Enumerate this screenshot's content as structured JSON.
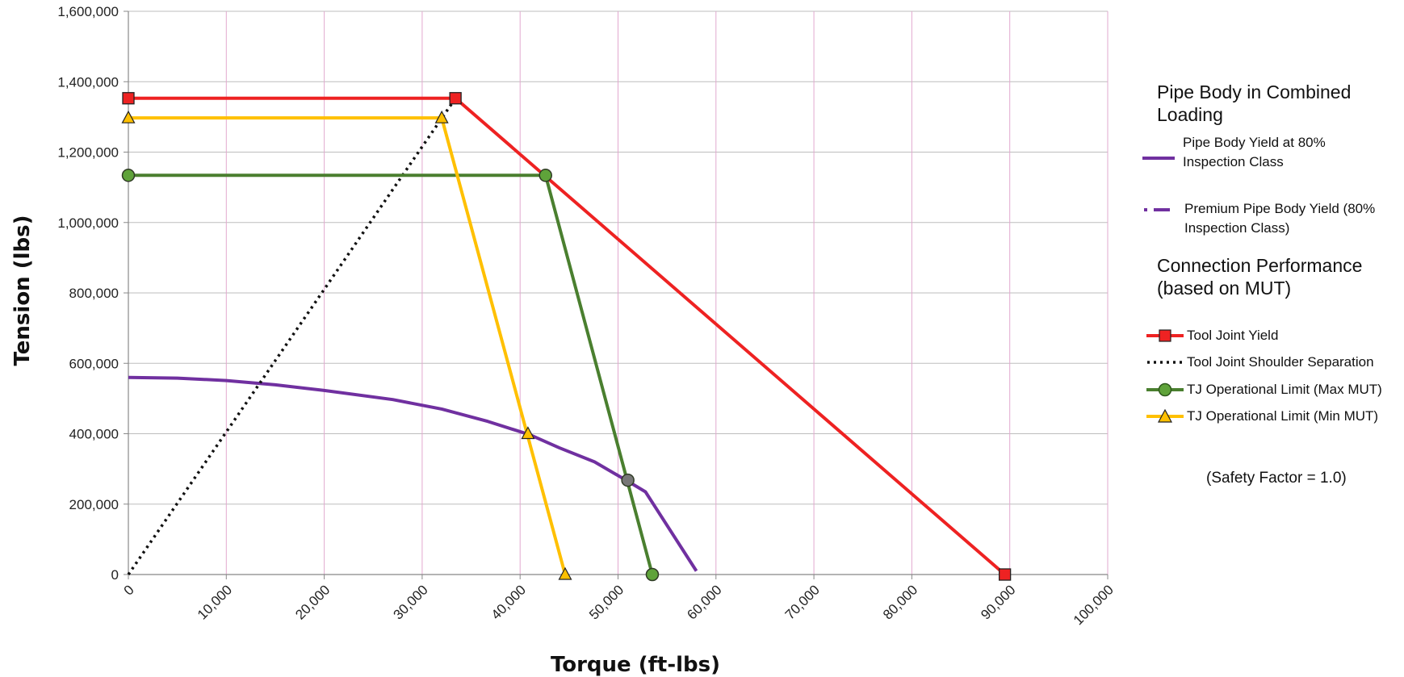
{
  "chart_data": {
    "type": "line",
    "xlabel": "Torque  (ft-lbs)",
    "ylabel": "Tension  (lbs)",
    "xlim": [
      0,
      100000
    ],
    "ylim": [
      0,
      1600000
    ],
    "x_ticks": [
      0,
      10000,
      20000,
      30000,
      40000,
      50000,
      60000,
      70000,
      80000,
      90000,
      100000
    ],
    "x_tick_labels": [
      "0",
      "10,000",
      "20,000",
      "30,000",
      "40,000",
      "50,000",
      "60,000",
      "70,000",
      "80,000",
      "90,000",
      "100,000"
    ],
    "y_ticks": [
      0,
      200000,
      400000,
      600000,
      800000,
      1000000,
      1200000,
      1400000,
      1600000
    ],
    "y_tick_labels": [
      "0",
      "200,000",
      "400,000",
      "600,000",
      "800,000",
      "1,000,000",
      "1,200,000",
      "1,400,000",
      "1,600,000"
    ],
    "grid": true,
    "legend_position": "right",
    "series": [
      {
        "name": "Pipe Body Yield at 80% Inspection Class",
        "color": "#7030a0",
        "style": "solid",
        "marker": "none",
        "points": [
          [
            0,
            560000
          ],
          [
            5000,
            558000
          ],
          [
            10000,
            551000
          ],
          [
            15000,
            539000
          ],
          [
            20000,
            523000
          ],
          [
            27000,
            497000
          ],
          [
            32000,
            470000
          ],
          [
            36700,
            435000
          ],
          [
            41000,
            397000
          ],
          [
            44000,
            360000
          ],
          [
            47600,
            320000
          ],
          [
            51000,
            265000
          ],
          [
            52800,
            235000
          ],
          [
            58000,
            10000
          ]
        ]
      },
      {
        "name": "Premium Pipe Body Yield (80% Inspection Class)",
        "color": "#7030a0",
        "style": "dash-dot",
        "marker": "none",
        "points": []
      },
      {
        "name": "Tool Joint Yield",
        "color": "#ee2222",
        "style": "solid",
        "marker": "square",
        "marker_fill": "#ee2222",
        "points": [
          [
            0,
            1353000
          ],
          [
            33400,
            1353000
          ],
          [
            89500,
            0
          ]
        ],
        "marker_points": [
          [
            0,
            1353000
          ],
          [
            33400,
            1353000
          ],
          [
            89500,
            0
          ]
        ]
      },
      {
        "name": "Tool Joint Shoulder Separation",
        "color": "#111111",
        "style": "dotted",
        "marker": "none",
        "points": [
          [
            0,
            0
          ],
          [
            33400,
            1353000
          ]
        ]
      },
      {
        "name": "TJ Operational Limit (Max MUT)",
        "color": "#4a7f2f",
        "style": "solid",
        "marker": "circle",
        "marker_fill": "#5fa33a",
        "points": [
          [
            0,
            1134000
          ],
          [
            42600,
            1134000
          ],
          [
            53500,
            0
          ]
        ],
        "marker_points": [
          [
            0,
            1134000
          ],
          [
            42600,
            1134000
          ],
          [
            53500,
            0
          ]
        ]
      },
      {
        "name": "TJ Operational Limit (Min MUT)",
        "color": "#ffc000",
        "style": "solid",
        "marker": "triangle",
        "marker_fill": "#ffc000",
        "points": [
          [
            0,
            1297000
          ],
          [
            32000,
            1297000
          ],
          [
            44600,
            0
          ]
        ],
        "marker_points": [
          [
            0,
            1297000
          ],
          [
            32000,
            1297000
          ],
          [
            44600,
            0
          ]
        ]
      }
    ],
    "intersection_markers": [
      {
        "x": 40800,
        "y": 400000,
        "marker": "triangle",
        "fill": "#ffc000"
      },
      {
        "x": 51000,
        "y": 268000,
        "marker": "circle",
        "fill": "#777777"
      }
    ]
  },
  "legend": {
    "heading_pipe": "Pipe Body in Combined Loading",
    "heading_pipe_line1": "Pipe Body in Combined",
    "heading_pipe_line2": "Loading",
    "pipe_body_yield_line1": "Pipe Body Yield at 80%",
    "pipe_body_yield_line2": "Inspection Class",
    "premium_line1": "Premium Pipe Body Yield (80%",
    "premium_line2": "Inspection Class)",
    "heading_conn_line1": "Connection Performance",
    "heading_conn_line2": "(based on  MUT)",
    "tool_joint_yield": "Tool Joint Yield",
    "shoulder_separation": "Tool Joint Shoulder Separation",
    "tj_max": "TJ Operational Limit (Max MUT)",
    "tj_min": "TJ Operational Limit (Min MUT)",
    "safety_factor": "(Safety Factor = 1.0)"
  }
}
